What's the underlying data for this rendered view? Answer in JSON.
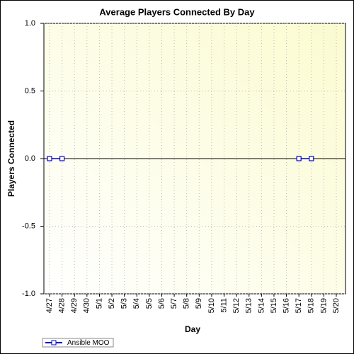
{
  "chart_data": {
    "type": "line",
    "title": "Average Players Connected By Day",
    "x_label": "Day",
    "y_label": "Players Connected",
    "categories": [
      "4/27",
      "4/28",
      "4/29",
      "4/30",
      "5/1",
      "5/2",
      "5/3",
      "5/4",
      "5/5",
      "5/6",
      "5/7",
      "5/8",
      "5/9",
      "5/10",
      "5/11",
      "5/12",
      "5/13",
      "5/14",
      "5/15",
      "5/16",
      "5/17",
      "5/18",
      "5/19",
      "5/20"
    ],
    "series": [
      {
        "name": "Ansible MOO",
        "color": "#0000cc",
        "values": [
          0,
          0,
          null,
          null,
          null,
          null,
          null,
          null,
          null,
          null,
          null,
          null,
          null,
          null,
          null,
          null,
          null,
          null,
          null,
          null,
          0,
          0,
          null,
          null
        ]
      }
    ],
    "ylim": [
      -1,
      1
    ],
    "yticks": [
      {
        "value": -1,
        "label": "-1.0"
      },
      {
        "value": -0.5,
        "label": "-0.5"
      },
      {
        "value": 0,
        "label": "0.0"
      },
      {
        "value": 0.5,
        "label": "0.5"
      },
      {
        "value": 1,
        "label": "1.0"
      }
    ],
    "grid": true,
    "legend": "bottom-left"
  }
}
